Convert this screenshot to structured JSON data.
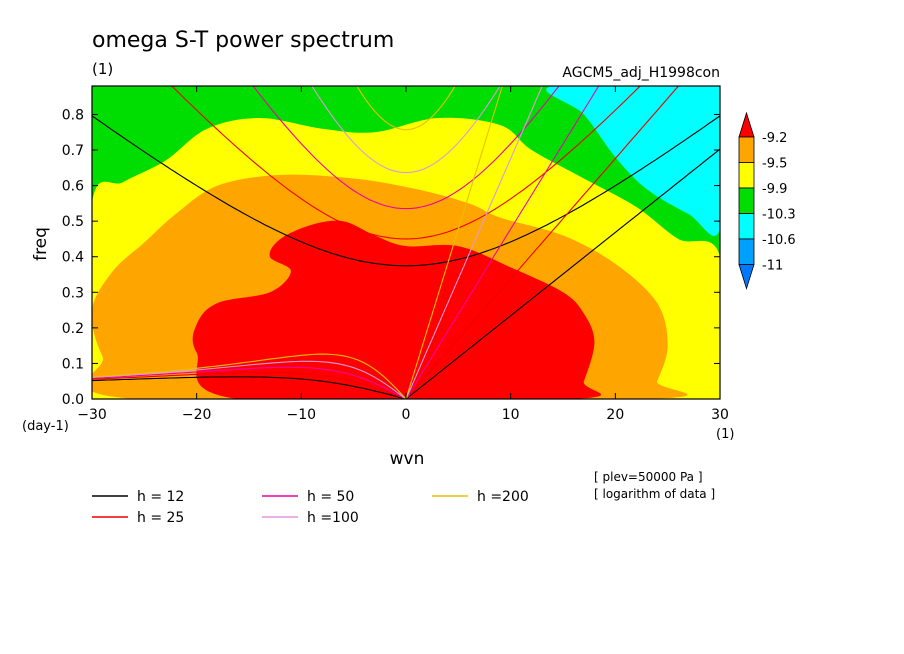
{
  "chart_data": {
    "type": "heatmap",
    "title": "omega S-T power spectrum",
    "title_unit": "(1)",
    "subtitle_right": "AGCM5_adj_H1998con",
    "xlabel": "wvn",
    "ylabel": "freq",
    "x_unit": "(1)",
    "y_unit": "(day-1)",
    "xlim": [
      -30,
      30
    ],
    "ylim": [
      0,
      0.88
    ],
    "x_ticks": [
      -30,
      -20,
      -10,
      0,
      10,
      20,
      30
    ],
    "x_tick_labels": [
      "−30",
      "−20",
      "−10",
      "0",
      "10",
      "20",
      "30"
    ],
    "y_ticks": [
      0.0,
      0.1,
      0.2,
      0.3,
      0.4,
      0.5,
      0.6,
      0.7,
      0.8
    ],
    "y_tick_labels": [
      "0.0",
      "0.1",
      "0.2",
      "0.3",
      "0.4",
      "0.5",
      "0.6",
      "0.7",
      "0.8"
    ],
    "colorbar": {
      "levels": [
        "-9.2",
        "-9.5",
        "-9.9",
        "-10.3",
        "-10.6",
        "-11"
      ],
      "colors": [
        "#ff0000",
        "#ffa500",
        "#ffff00",
        "#00dd00",
        "#00ffff",
        "#00a0ff",
        "#0050ff"
      ],
      "top_color": "#ff0000",
      "bottom_color": "#0078ff"
    },
    "regions": [
      {
        "level": "< -11",
        "color": "#0050ff",
        "points": [
          [
            26,
            0.88
          ],
          [
            30,
            0.88
          ],
          [
            30,
            0.74
          ],
          [
            28,
            0.81
          ]
        ]
      },
      {
        "level": "-11 to -10.6",
        "color": "#00a0ff",
        "points": [
          [
            21,
            0.88
          ],
          [
            30,
            0.88
          ],
          [
            30,
            0.63
          ],
          [
            27,
            0.71
          ],
          [
            23,
            0.81
          ]
        ]
      },
      {
        "level": "-10.6 to -10.3",
        "color": "#00ffff",
        "points": [
          [
            14,
            0.88
          ],
          [
            30,
            0.88
          ],
          [
            30,
            0.48
          ],
          [
            27,
            0.52
          ],
          [
            23,
            0.59
          ],
          [
            20,
            0.68
          ],
          [
            17,
            0.8
          ]
        ]
      },
      {
        "level": "-10.3 to -9.9",
        "color": "#00dd00",
        "points": [
          [
            -30,
            0.88
          ],
          [
            30,
            0.88
          ],
          [
            30,
            0.88
          ],
          [
            30,
            0.48
          ],
          [
            27,
            0.52
          ],
          [
            23,
            0.59
          ],
          [
            20,
            0.68
          ],
          [
            17,
            0.8
          ],
          [
            14,
            0.88
          ]
        ],
        "is_background": true
      },
      {
        "level": "-9.9 to -9.5",
        "color": "#ffff00",
        "points": [
          [
            -30,
            0.55
          ],
          [
            -27,
            0.61
          ],
          [
            -23,
            0.67
          ],
          [
            -19,
            0.76
          ],
          [
            -14,
            0.79
          ],
          [
            -8,
            0.76
          ],
          [
            -3,
            0.75
          ],
          [
            3,
            0.79
          ],
          [
            9,
            0.77
          ],
          [
            12,
            0.7
          ],
          [
            17,
            0.62
          ],
          [
            22,
            0.54
          ],
          [
            26,
            0.45
          ],
          [
            30,
            0.4
          ],
          [
            30,
            0.0
          ],
          [
            -30,
            0.0
          ]
        ]
      },
      {
        "level": "-9.5 to -9.2",
        "color": "#ffa500",
        "points": [
          [
            -26,
            0.0
          ],
          [
            -29,
            0.12
          ],
          [
            -30,
            0.25
          ],
          [
            -28,
            0.36
          ],
          [
            -25,
            0.44
          ],
          [
            -22,
            0.52
          ],
          [
            -18,
            0.6
          ],
          [
            -12,
            0.63
          ],
          [
            -5,
            0.62
          ],
          [
            1,
            0.59
          ],
          [
            6,
            0.55
          ],
          [
            9,
            0.51
          ],
          [
            15,
            0.46
          ],
          [
            20,
            0.38
          ],
          [
            24,
            0.27
          ],
          [
            25,
            0.15
          ],
          [
            24,
            0.05
          ],
          [
            23,
            0.0
          ]
        ]
      },
      {
        "level": "> -9.2",
        "color": "#ff0000",
        "points": [
          [
            -16,
            0.0
          ],
          [
            -20,
            0.13
          ],
          [
            -20,
            0.21
          ],
          [
            -18,
            0.27
          ],
          [
            -13,
            0.3
          ],
          [
            -11,
            0.36
          ],
          [
            -13,
            0.4
          ],
          [
            -12,
            0.45
          ],
          [
            -9,
            0.49
          ],
          [
            -6,
            0.5
          ],
          [
            -3,
            0.46
          ],
          [
            0,
            0.43
          ],
          [
            5,
            0.43
          ],
          [
            10,
            0.37
          ],
          [
            15,
            0.3
          ],
          [
            17,
            0.24
          ],
          [
            18,
            0.16
          ],
          [
            17,
            0.05
          ],
          [
            16,
            0.0
          ]
        ]
      }
    ],
    "dispersion_curves": [
      {
        "h": 12,
        "label": "h = 12",
        "color": "#000000"
      },
      {
        "h": 25,
        "label": "h = 25",
        "color": "#ee0000"
      },
      {
        "h": 50,
        "label": "h = 50",
        "color": "#ee00aa"
      },
      {
        "h": 100,
        "label": "h =100",
        "color": "#dd99dd"
      },
      {
        "h": 200,
        "label": "h =200",
        "color": "#e8c000"
      }
    ],
    "notes": [
      "[ plev=50000 Pa ]",
      "[ logarithm of data ]"
    ]
  }
}
